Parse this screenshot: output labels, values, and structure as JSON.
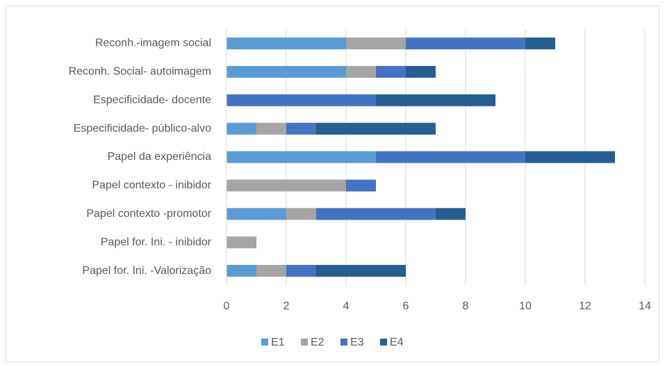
{
  "chart_data": {
    "type": "stacked-bar-horizontal",
    "categories": [
      "Reconh.-imagem social",
      "Reconh. Social- autoimagem",
      "Especificidade- docente",
      "Especificidade- público-alvo",
      "Papel da experiência",
      "Papel contexto - inibidor",
      "Papel contexto -promotor",
      "Papel for. Ini. - inibidor",
      "Papel for. Ini. -Valorização"
    ],
    "series": [
      {
        "name": "E1",
        "color": "#5b9bd5",
        "values": [
          4,
          4,
          0,
          1,
          5,
          0,
          2,
          0,
          1
        ]
      },
      {
        "name": "E2",
        "color": "#a5a5a5",
        "values": [
          2,
          1,
          0,
          1,
          0,
          4,
          1,
          1,
          1
        ]
      },
      {
        "name": "E3",
        "color": "#4472c4",
        "values": [
          4,
          1,
          5,
          1,
          5,
          1,
          4,
          0,
          1
        ]
      },
      {
        "name": "E4",
        "color": "#255e91",
        "values": [
          1,
          1,
          4,
          4,
          3,
          0,
          1,
          0,
          3
        ]
      }
    ],
    "xlim": [
      0,
      14
    ],
    "xticks": [
      0,
      2,
      4,
      6,
      8,
      10,
      12,
      14
    ],
    "grid": true,
    "legend": "bottom"
  }
}
